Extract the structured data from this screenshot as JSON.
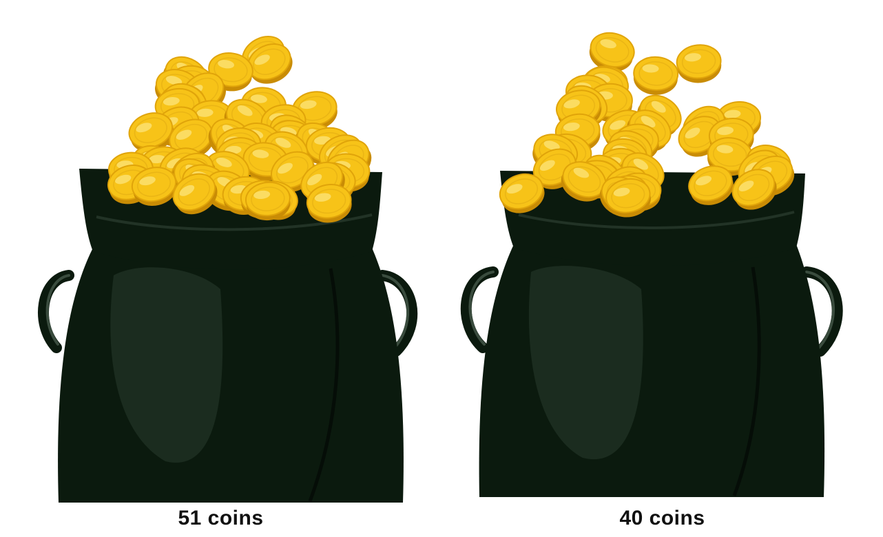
{
  "pots": [
    {
      "label": "51 coins",
      "coin_count": 51
    },
    {
      "label": "40 coins",
      "coin_count": 40
    }
  ],
  "colors": {
    "pot_body": "#0b1a0e",
    "pot_highlight": "#1f3324",
    "handle": "#2a3a2d",
    "coin_face": "#f7c318",
    "coin_edge": "#c98c05",
    "coin_shine": "#fff1a0",
    "caption_text": "#111111"
  }
}
